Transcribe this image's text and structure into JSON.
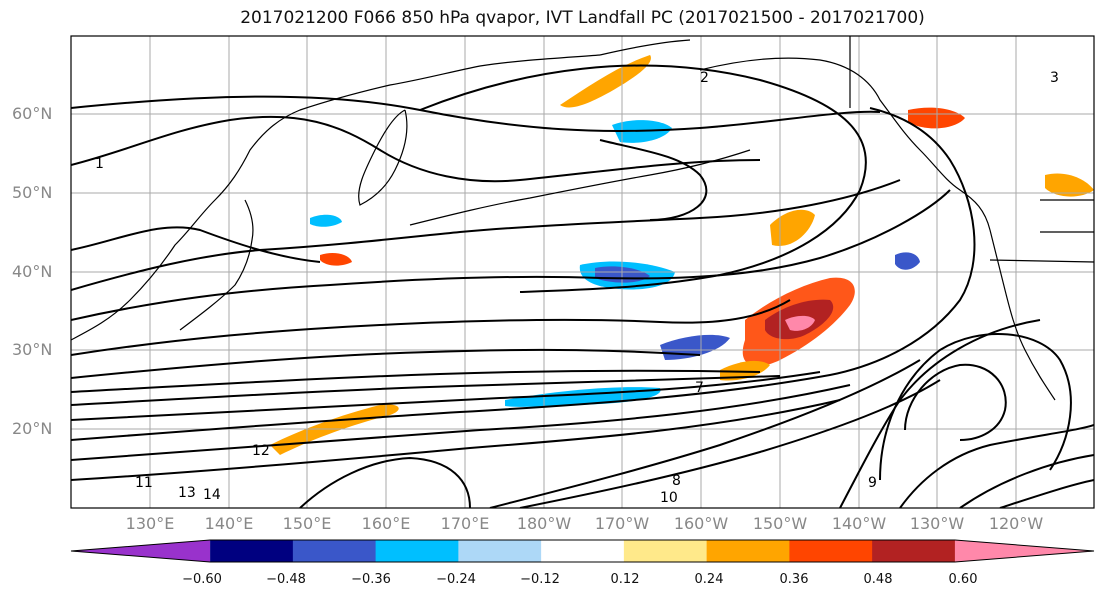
{
  "title": "2017021200 F066 850 hPa qvapor, IVT Landfall PC (2017021500 - 2017021700)",
  "lat_labels": [
    "60°N",
    "50°N",
    "40°N",
    "30°N",
    "20°N"
  ],
  "lon_labels": [
    "130°E",
    "140°E",
    "150°E",
    "160°E",
    "170°E",
    "180°W",
    "170°W",
    "160°W",
    "150°W",
    "140°W",
    "130°W",
    "120°W"
  ],
  "colorbar": {
    "ticks": [
      "−0.60",
      "−0.48",
      "−0.36",
      "−0.24",
      "−0.12",
      "0.12",
      "0.24",
      "0.36",
      "0.48",
      "0.60"
    ],
    "colors": [
      "#9932cc",
      "#000080",
      "#3a57c9",
      "#00bfff",
      "#add8f7",
      "#ffffff",
      "#ffe98a",
      "#ffa500",
      "#ff4500",
      "#b22222",
      "#ff88aa"
    ]
  },
  "contour_labels": [
    "1",
    "2",
    "3",
    "7",
    "8",
    "9",
    "10",
    "11",
    "12",
    "13",
    "14"
  ]
}
